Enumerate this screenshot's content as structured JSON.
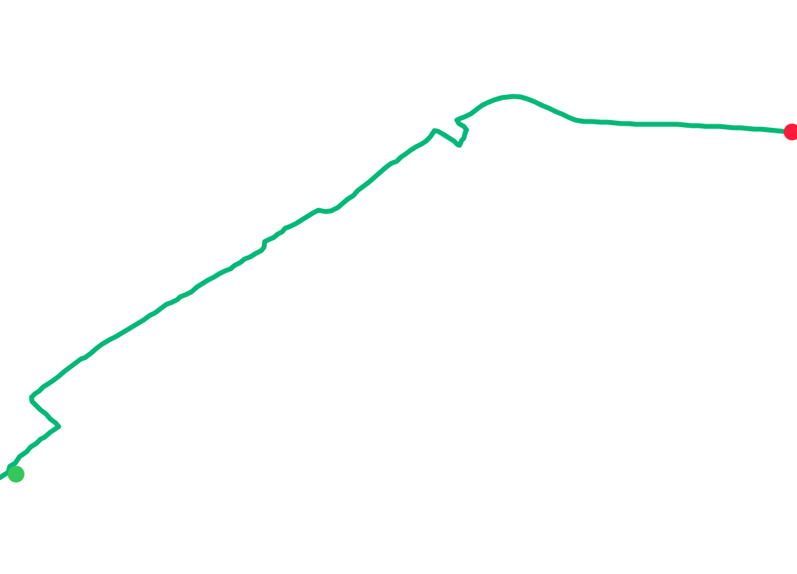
{
  "map": {
    "route_color": "#00b877",
    "start_marker_color": "#34c759",
    "end_marker_color": "#ff1a3c",
    "background_color": "#ffffff"
  }
}
